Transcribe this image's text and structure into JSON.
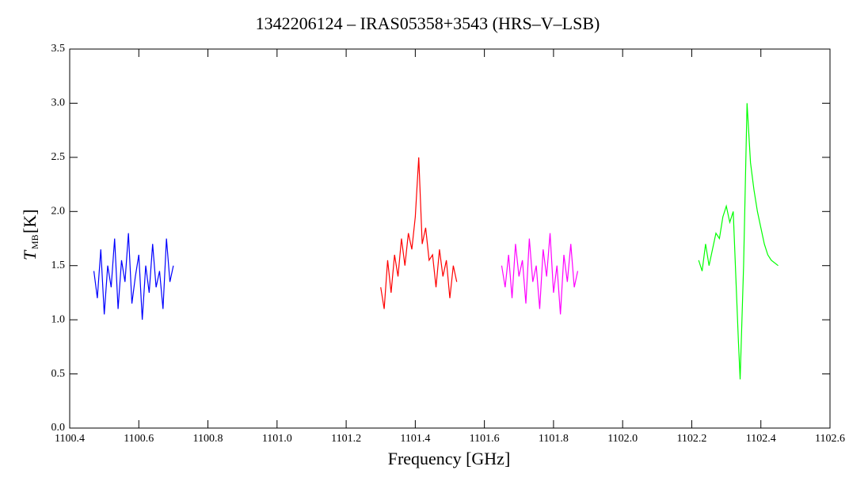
{
  "chart_data": {
    "type": "line",
    "title": "1342206124 – IRAS05358+3543 (HRS–V–LSB)",
    "xlabel": "Frequency [GHz]",
    "ylabel": "T",
    "ylabel_sub": "MB",
    "ylabel_unit": "[K]",
    "xlim": [
      1100.4,
      1102.6
    ],
    "xticks": [
      1100.4,
      1100.6,
      1100.8,
      {
        "value": 1101,
        "label": "1101.0"
      },
      1101.2,
      1101.4,
      1101.6,
      1101.8,
      {
        "value": 1102,
        "label": "1102.0"
      },
      1102.2,
      1102.4,
      1102.6
    ],
    "ylim": [
      0,
      3.5
    ],
    "yticks": [
      {
        "value": 0,
        "label": "0.0"
      },
      0.5,
      {
        "value": 1,
        "label": "1.0"
      },
      1.5,
      {
        "value": 2,
        "label": "2.0"
      },
      2.5,
      {
        "value": 3,
        "label": "3.0"
      },
      3.5
    ],
    "series": [
      {
        "color": "#0000ff",
        "x": [
          1100.47,
          1100.48,
          1100.49,
          1100.5,
          1100.51,
          1100.52,
          1100.53,
          1100.54,
          1100.55,
          1100.56,
          1100.57,
          1100.58,
          1100.59,
          1100.6,
          1100.61,
          1100.62,
          1100.63,
          1100.64,
          1100.65,
          1100.66,
          1100.67,
          1100.68,
          1100.69,
          1100.7
        ],
        "values": [
          1.45,
          1.2,
          1.65,
          1.05,
          1.5,
          1.3,
          1.75,
          1.1,
          1.55,
          1.35,
          1.8,
          1.15,
          1.4,
          1.6,
          1.0,
          1.5,
          1.25,
          1.7,
          1.3,
          1.45,
          1.1,
          1.75,
          1.35,
          1.5
        ]
      },
      {
        "color": "#ff0000",
        "x": [
          1101.3,
          1101.31,
          1101.32,
          1101.33,
          1101.34,
          1101.35,
          1101.36,
          1101.37,
          1101.38,
          1101.39,
          1101.4,
          1101.41,
          1101.42,
          1101.43,
          1101.44,
          1101.45,
          1101.46,
          1101.47,
          1101.48,
          1101.49,
          1101.5,
          1101.51,
          1101.52
        ],
        "values": [
          1.3,
          1.1,
          1.55,
          1.25,
          1.6,
          1.4,
          1.75,
          1.5,
          1.8,
          1.65,
          1.95,
          2.5,
          1.7,
          1.85,
          1.55,
          1.6,
          1.3,
          1.65,
          1.4,
          1.55,
          1.2,
          1.5,
          1.35
        ]
      },
      {
        "color": "#ff00ff",
        "x": [
          1101.65,
          1101.66,
          1101.67,
          1101.68,
          1101.69,
          1101.7,
          1101.71,
          1101.72,
          1101.73,
          1101.74,
          1101.75,
          1101.76,
          1101.77,
          1101.78,
          1101.79,
          1101.8,
          1101.81,
          1101.82,
          1101.83,
          1101.84,
          1101.85,
          1101.86,
          1101.87
        ],
        "values": [
          1.5,
          1.3,
          1.6,
          1.2,
          1.7,
          1.4,
          1.55,
          1.15,
          1.75,
          1.35,
          1.5,
          1.1,
          1.65,
          1.4,
          1.8,
          1.25,
          1.5,
          1.05,
          1.6,
          1.35,
          1.7,
          1.3,
          1.45
        ]
      },
      {
        "color": "#00ff00",
        "x": [
          1102.22,
          1102.23,
          1102.24,
          1102.25,
          1102.26,
          1102.27,
          1102.28,
          1102.29,
          1102.3,
          1102.31,
          1102.32,
          1102.33,
          1102.335,
          1102.34,
          1102.35,
          1102.36,
          1102.37,
          1102.38,
          1102.39,
          1102.4,
          1102.41,
          1102.42,
          1102.43,
          1102.45
        ],
        "values": [
          1.55,
          1.45,
          1.7,
          1.5,
          1.65,
          1.8,
          1.75,
          1.95,
          2.05,
          1.9,
          2.0,
          1.2,
          0.8,
          0.45,
          1.5,
          3.0,
          2.45,
          2.2,
          2.0,
          1.85,
          1.7,
          1.6,
          1.55,
          1.5
        ]
      }
    ]
  }
}
